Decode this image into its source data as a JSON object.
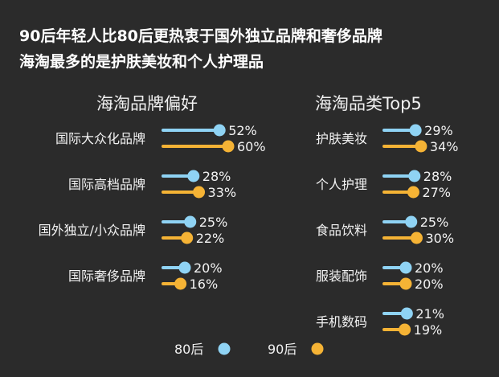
{
  "title_line1": "90后年轻人比80后更热衷于国外独立品牌和奢侈品牌",
  "title_line2": "海淘最多的是护肤美妆和个人护理品",
  "colors": {
    "series_80": "#8fd3f4",
    "series_90": "#f5b335",
    "background": "#2b2b2b"
  },
  "legend": [
    {
      "name": "80后",
      "color": "#8fd3f4"
    },
    {
      "name": "90后",
      "color": "#f5b335"
    }
  ],
  "chart_data": [
    {
      "type": "bar",
      "title": "海淘品牌偏好",
      "categories": [
        "国际大众化品牌",
        "国际高档品牌",
        "国外独立/小众品牌",
        "国际奢侈品牌"
      ],
      "series": [
        {
          "name": "80后",
          "values": [
            52,
            28,
            25,
            20
          ]
        },
        {
          "name": "90后",
          "values": [
            60,
            33,
            22,
            16
          ]
        }
      ],
      "value_labels": {
        "80后": [
          "52%",
          "28%",
          "25%",
          "20%"
        ],
        "90后": [
          "60%",
          "33%",
          "22%",
          "16%"
        ]
      }
    },
    {
      "type": "bar",
      "title": "海淘品类Top5",
      "categories": [
        "护肤美妆",
        "个人护理",
        "食品饮料",
        "服装配饰",
        "手机数码"
      ],
      "series": [
        {
          "name": "80后",
          "values": [
            29,
            28,
            25,
            20,
            21
          ]
        },
        {
          "name": "90后",
          "values": [
            34,
            27,
            30,
            20,
            19
          ]
        }
      ],
      "value_labels": {
        "80后": [
          "29%",
          "28%",
          "25%",
          "20%",
          "21%"
        ],
        "90后": [
          "34%",
          "27%",
          "30%",
          "20%",
          "19%"
        ]
      }
    }
  ]
}
